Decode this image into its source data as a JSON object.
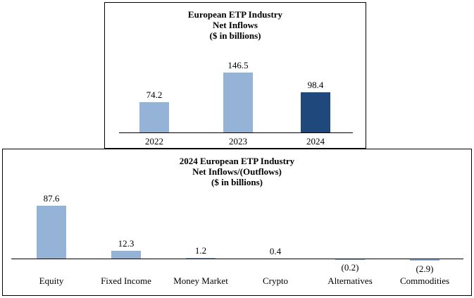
{
  "chart_data": [
    {
      "type": "bar",
      "title": "European ETP Industry",
      "subtitle": "Net Inflows",
      "units_label": "($ in billions)",
      "categories": [
        "2022",
        "2023",
        "2024"
      ],
      "values": [
        74.2,
        146.5,
        98.4
      ],
      "value_labels": [
        "74.2",
        "146.5",
        "98.4"
      ],
      "bar_colors": [
        "#95B3D7",
        "#95B3D7",
        "#1F497D"
      ],
      "ylim": [
        0,
        160
      ],
      "grid": false,
      "legend": false
    },
    {
      "type": "bar",
      "title": "2024 European ETP Industry",
      "subtitle": "Net Inflows/(Outflows)",
      "units_label": "($ in billions)",
      "categories": [
        "Equity",
        "Fixed Income",
        "Money Market",
        "Crypto",
        "Alternatives",
        "Commodities"
      ],
      "values": [
        87.6,
        12.3,
        1.2,
        0.4,
        -0.2,
        -2.9
      ],
      "value_labels": [
        "87.6",
        "12.3",
        "1.2",
        "0.4",
        "(0.2)",
        "(2.9)"
      ],
      "bar_colors": [
        "#95B3D7",
        "#95B3D7",
        "#95B3D7",
        "#95B3D7",
        "#95B3D7",
        "#95B3D7"
      ],
      "ylim": [
        -10,
        100
      ],
      "grid": false,
      "legend": false
    }
  ],
  "colors": {
    "light_blue": "#95B3D7",
    "dark_blue": "#1F497D",
    "axis": "#000000",
    "border": "#000000"
  }
}
